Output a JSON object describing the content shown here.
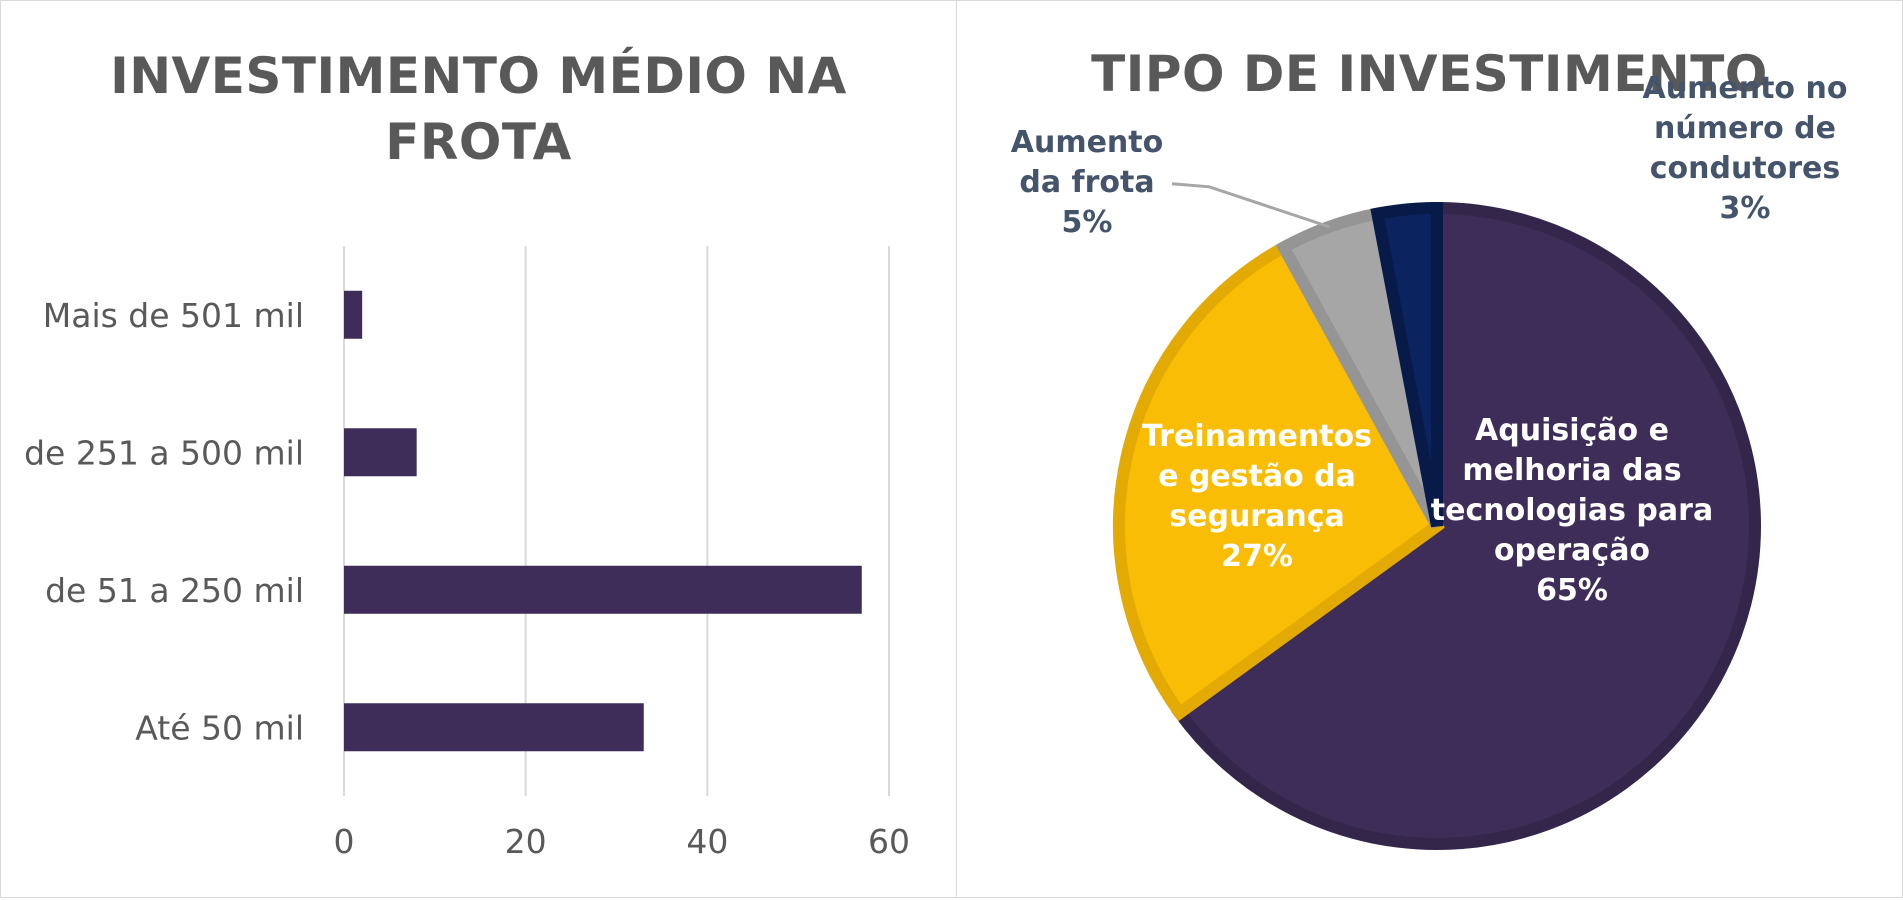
{
  "chart_data": [
    {
      "type": "bar",
      "orientation": "horizontal",
      "title": "INVESTIMENTO MÉDIO NA FROTA",
      "categories": [
        "Mais de 501 mil",
        "de 251 a 500 mil",
        "de 51 a 250 mil",
        "Até 50 mil"
      ],
      "values": [
        2,
        8,
        57,
        33
      ],
      "xlim": [
        0,
        60
      ],
      "xticks": [
        "0",
        "20",
        "40",
        "60"
      ],
      "grid": true,
      "color": "#3d2d58"
    },
    {
      "type": "pie",
      "title": "TIPO DE INVESTIMENTO",
      "slices": [
        {
          "label": "Aquisição e melhoria das tecnologias para operação",
          "lines": [
            "Aquisição e",
            "melhoria das",
            "tecnologias para",
            "operação",
            "65%"
          ],
          "value": 65,
          "color": "#3d2d58",
          "border": "#33264a",
          "label_color": "#ffffff"
        },
        {
          "label": "Treinamentos e gestão da segurança",
          "lines": [
            "Treinamentos",
            "e gestão da",
            "segurança",
            "27%"
          ],
          "value": 27,
          "color": "#f8bd04",
          "border": "#e3aa03",
          "label_color": "#ffffff"
        },
        {
          "label": "Aumento da frota",
          "lines": [
            "Aumento",
            "da frota",
            "5%"
          ],
          "value": 5,
          "color": "#a6a6a6",
          "border": "#959595",
          "label_color": "#44546a"
        },
        {
          "label": "Aumento no número de condutores",
          "lines": [
            "Aumento no",
            "número de",
            "condutores",
            "3%"
          ],
          "value": 3,
          "color": "#0b2460",
          "border": "#081a47",
          "label_color": "#44546a"
        }
      ]
    }
  ]
}
